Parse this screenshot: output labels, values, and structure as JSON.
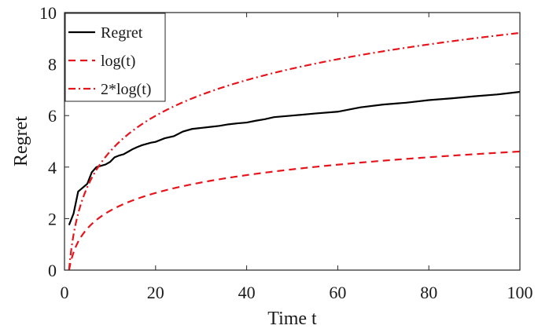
{
  "chart_data": {
    "type": "line",
    "title": "",
    "xlabel": "Time t",
    "ylabel": "Regret",
    "xlim": [
      0,
      100
    ],
    "ylim": [
      0,
      10
    ],
    "xticks": [
      0,
      20,
      40,
      60,
      80,
      100
    ],
    "yticks": [
      0,
      2,
      4,
      6,
      8,
      10
    ],
    "x_tick_labels": [
      "0",
      "20",
      "40",
      "60",
      "80",
      "100"
    ],
    "y_tick_labels": [
      "0",
      "2",
      "4",
      "6",
      "8",
      "10"
    ],
    "grid": false,
    "legend_position": "top-left",
    "series": [
      {
        "name": "Regret",
        "color": "#000000",
        "dash": "solid",
        "x": [
          1,
          2,
          3,
          4,
          5,
          6,
          7,
          8,
          9,
          10,
          11,
          12,
          13,
          14,
          15,
          16,
          17,
          18,
          19,
          20,
          22,
          24,
          26,
          28,
          30,
          32,
          34,
          36,
          38,
          40,
          42,
          44,
          46,
          48,
          50,
          55,
          60,
          65,
          70,
          75,
          80,
          85,
          90,
          95,
          100
        ],
        "y": [
          1.75,
          2.2,
          3.05,
          3.2,
          3.35,
          3.8,
          4.0,
          4.05,
          4.1,
          4.2,
          4.38,
          4.45,
          4.5,
          4.6,
          4.7,
          4.78,
          4.85,
          4.9,
          4.95,
          4.98,
          5.12,
          5.2,
          5.38,
          5.48,
          5.52,
          5.56,
          5.6,
          5.66,
          5.7,
          5.73,
          5.8,
          5.86,
          5.94,
          5.97,
          6.0,
          6.08,
          6.15,
          6.32,
          6.43,
          6.5,
          6.6,
          6.67,
          6.75,
          6.82,
          6.92
        ]
      },
      {
        "name": "log(t)",
        "color": "#e8141c",
        "dash": "dashed",
        "function": "log(t)",
        "x_range": [
          1,
          100
        ]
      },
      {
        "name": "2*log(t)",
        "color": "#e8141c",
        "dash": "dashdot",
        "function": "2*log(t)",
        "x_range": [
          1,
          100
        ]
      }
    ]
  }
}
